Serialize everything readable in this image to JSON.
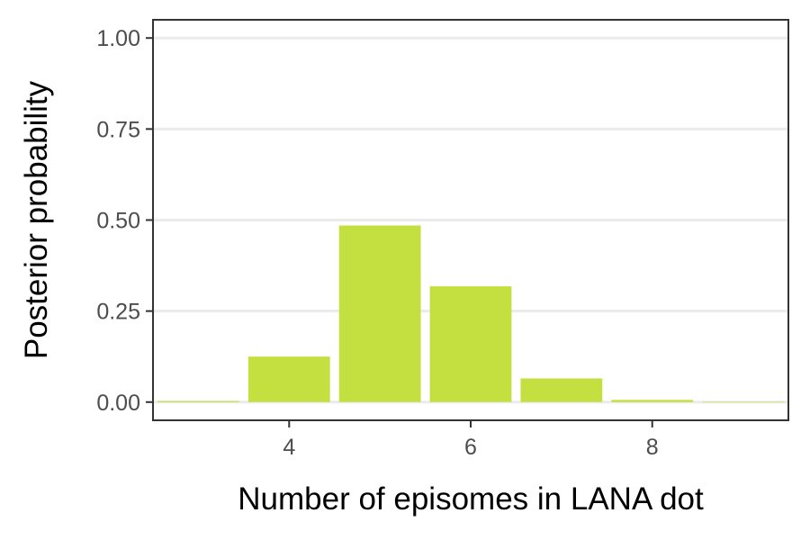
{
  "chart_data": {
    "type": "bar",
    "xlabel": "Number of episomes in LANA dot",
    "ylabel": "Posterior probability",
    "x": [
      3,
      4,
      5,
      6,
      7,
      8,
      9
    ],
    "values": [
      0.003,
      0.125,
      0.485,
      0.318,
      0.065,
      0.006,
      0.0005
    ],
    "xlim": [
      2.5,
      9.5
    ],
    "ylim": [
      -0.05,
      1.05
    ],
    "x_ticks": [
      4,
      6,
      8
    ],
    "x_tick_labels": [
      "4",
      "6",
      "8"
    ],
    "y_ticks": [
      0,
      0.25,
      0.5,
      0.75,
      1.0
    ],
    "y_tick_labels": [
      "0.00",
      "0.25",
      "0.50",
      "0.75",
      "1.00"
    ],
    "bar_color": "#c4df40",
    "gridlines": "horizontal",
    "legend": "none"
  }
}
